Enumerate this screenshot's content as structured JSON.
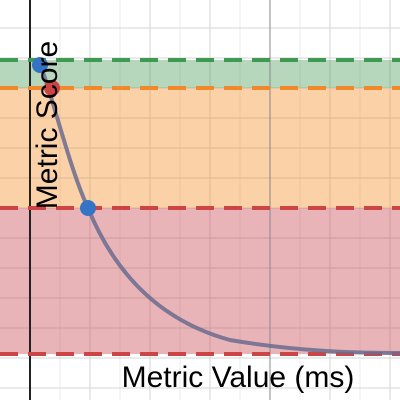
{
  "x_axis_label": "Metric Value (ms)",
  "y_axis_label": "Metric Score"
}
